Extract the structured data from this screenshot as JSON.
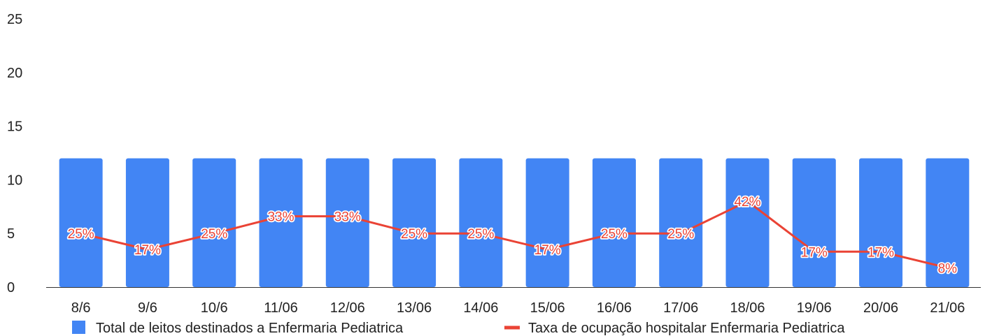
{
  "chart_data": {
    "type": "bar",
    "categories": [
      "8/6",
      "9/6",
      "10/6",
      "11/06",
      "12/06",
      "13/06",
      "14/06",
      "15/06",
      "16/06",
      "17/06",
      "18/06",
      "19/06",
      "20/06",
      "21/06"
    ],
    "series": [
      {
        "name": "Total de leitos destinados a Enfermaria Pediatrica",
        "type": "bar",
        "color": "#4285f4",
        "values": [
          12,
          12,
          12,
          12,
          12,
          12,
          12,
          12,
          12,
          12,
          12,
          12,
          12,
          12
        ]
      },
      {
        "name": "Taxa de ocupação hospitalar Enfermaria Pediatrica",
        "type": "line",
        "color": "#ea4335",
        "values": [
          5,
          3.5,
          5,
          6.6,
          6.6,
          5,
          5,
          3.5,
          5,
          5,
          8,
          3.3,
          3.3,
          1.8
        ],
        "labels": [
          "25%",
          "17%",
          "25%",
          "33%",
          "33%",
          "25%",
          "25%",
          "17%",
          "25%",
          "25%",
          "42%",
          "17%",
          "17%",
          "8%"
        ]
      }
    ],
    "ylim": [
      0,
      25
    ],
    "yticks": [
      0,
      5,
      10,
      15,
      20,
      25
    ],
    "grid": false,
    "legend_position": "bottom"
  }
}
